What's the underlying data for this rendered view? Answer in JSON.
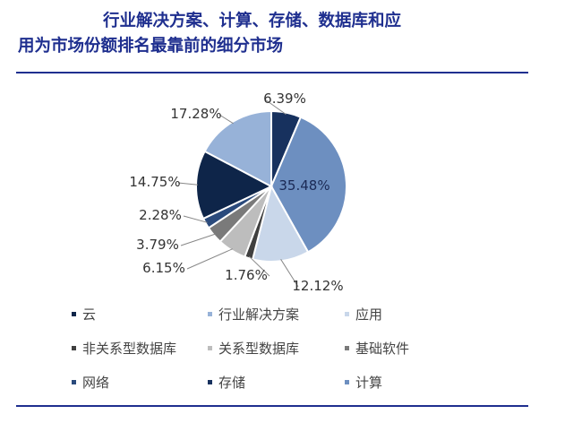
{
  "title": {
    "line1": "行业解决方案、计算、存储、数据库和应",
    "line2": "用为市场份额排名最靠前的细分市场"
  },
  "chart_data": {
    "type": "pie",
    "title": "行业解决方案、计算、存储、数据库和应用为市场份额排名最靠前的细分市场",
    "slices": [
      {
        "name": "存储",
        "value": 6.39,
        "label": "6.39%",
        "color": "#17315e"
      },
      {
        "name": "计算",
        "value": 35.48,
        "label": "35.48%",
        "color": "#6d8fc0"
      },
      {
        "name": "应用",
        "value": 12.12,
        "label": "12.12%",
        "color": "#c9d7ea"
      },
      {
        "name": "非关系型数据库",
        "value": 1.76,
        "label": "1.76%",
        "color": "#404040"
      },
      {
        "name": "关系型数据库",
        "value": 6.15,
        "label": "6.15%",
        "color": "#bdbdbd"
      },
      {
        "name": "基础软件",
        "value": 3.79,
        "label": "3.79%",
        "color": "#7a7a7a"
      },
      {
        "name": "网络",
        "value": 2.28,
        "label": "2.28%",
        "color": "#2a4a7c"
      },
      {
        "name": "云",
        "value": 14.75,
        "label": "14.75%",
        "color": "#0e2549"
      },
      {
        "name": "行业解决方案",
        "value": 17.28,
        "label": "17.28%",
        "color": "#97b2d8"
      }
    ],
    "legend": {
      "placement": "bottom",
      "items": [
        {
          "name": "云",
          "color": "#0e2549"
        },
        {
          "name": "行业解决方案",
          "color": "#97b2d8"
        },
        {
          "name": "应用",
          "color": "#c9d7ea"
        },
        {
          "name": "非关系型数据库",
          "color": "#404040"
        },
        {
          "name": "关系型数据库",
          "color": "#bdbdbd"
        },
        {
          "name": "基础软件",
          "color": "#7a7a7a"
        },
        {
          "name": "网络",
          "color": "#2a4a7c"
        },
        {
          "name": "存储",
          "color": "#17315e"
        },
        {
          "name": "计算",
          "color": "#6d8fc0"
        }
      ]
    }
  }
}
